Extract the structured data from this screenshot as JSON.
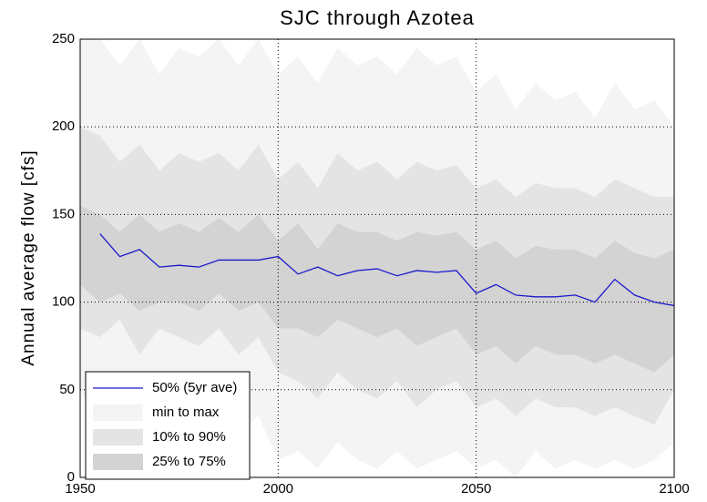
{
  "chart_data": {
    "type": "line",
    "title": "SJC through Azotea",
    "ylabel": "Annual average flow [cfs]",
    "x": [
      1950,
      1955,
      1960,
      1965,
      1970,
      1975,
      1980,
      1985,
      1990,
      1995,
      2000,
      2005,
      2010,
      2015,
      2020,
      2025,
      2030,
      2035,
      2040,
      2045,
      2050,
      2055,
      2060,
      2065,
      2070,
      2075,
      2080,
      2085,
      2090,
      2095,
      2100
    ],
    "xlim": [
      1950,
      2100
    ],
    "xticks": [
      1950,
      2000,
      2050,
      2100
    ],
    "ylim": [
      0,
      250
    ],
    "yticks": [
      0,
      50,
      100,
      150,
      200,
      250
    ],
    "grid": true,
    "legend": "lower left",
    "series": [
      {
        "name": "50% (5yr ave)",
        "color": "#1a1acc",
        "values": [
          null,
          139,
          126,
          130,
          120,
          121,
          120,
          124,
          124,
          124,
          126,
          116,
          120,
          115,
          118,
          119,
          115,
          118,
          117,
          118,
          105,
          110,
          104,
          103,
          103,
          104,
          100,
          113,
          104,
          100,
          98
        ]
      }
    ],
    "bands": [
      {
        "name": "min to max",
        "color": "#f4f4f4",
        "lower": [
          50,
          30,
          45,
          25,
          40,
          35,
          30,
          40,
          25,
          35,
          10,
          15,
          5,
          20,
          10,
          5,
          15,
          5,
          10,
          15,
          5,
          10,
          0,
          15,
          5,
          10,
          5,
          10,
          5,
          10,
          20
        ],
        "upper": [
          250,
          250,
          235,
          250,
          230,
          245,
          240,
          250,
          235,
          250,
          230,
          240,
          225,
          245,
          235,
          240,
          230,
          245,
          235,
          240,
          220,
          230,
          210,
          225,
          215,
          220,
          205,
          225,
          210,
          215,
          200
        ]
      },
      {
        "name": "10% to 90%",
        "color": "#e4e4e4",
        "lower": [
          85,
          80,
          90,
          70,
          85,
          80,
          75,
          85,
          70,
          80,
          60,
          55,
          45,
          60,
          50,
          45,
          55,
          40,
          50,
          55,
          40,
          45,
          35,
          45,
          40,
          40,
          35,
          40,
          35,
          30,
          50
        ],
        "upper": [
          200,
          195,
          180,
          190,
          175,
          185,
          180,
          185,
          175,
          190,
          170,
          180,
          165,
          185,
          175,
          180,
          170,
          180,
          175,
          178,
          165,
          170,
          160,
          168,
          165,
          165,
          160,
          170,
          165,
          160,
          160
        ]
      },
      {
        "name": "25% to 75%",
        "color": "#d3d3d3",
        "lower": [
          110,
          100,
          105,
          95,
          100,
          100,
          95,
          105,
          95,
          100,
          85,
          85,
          80,
          90,
          85,
          80,
          85,
          75,
          80,
          85,
          70,
          75,
          65,
          75,
          70,
          70,
          65,
          70,
          65,
          60,
          70
        ],
        "upper": [
          155,
          150,
          140,
          150,
          140,
          145,
          140,
          148,
          140,
          150,
          135,
          145,
          130,
          145,
          140,
          140,
          135,
          140,
          138,
          140,
          130,
          135,
          125,
          132,
          130,
          130,
          125,
          135,
          128,
          125,
          130
        ]
      }
    ]
  }
}
